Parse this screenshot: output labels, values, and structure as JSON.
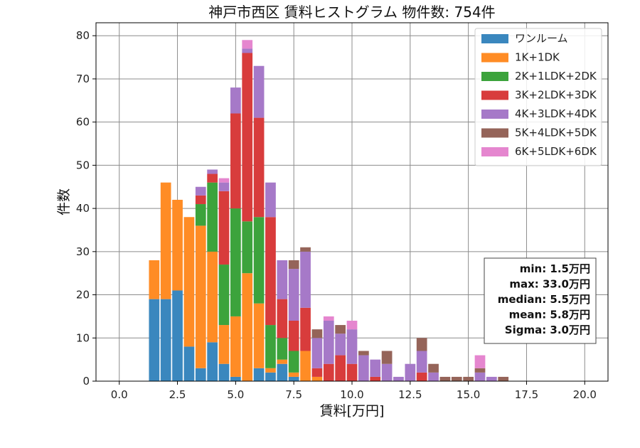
{
  "chart_data": {
    "type": "bar",
    "stacked": true,
    "title": "神戸市西区 賃料ヒストグラム 物件数: 754件",
    "xlabel": "賃料[万円]",
    "ylabel": "件数",
    "xlim": [
      -1.0,
      21.0
    ],
    "ylim": [
      0,
      83
    ],
    "xticks": [
      0.0,
      2.5,
      5.0,
      7.5,
      10.0,
      12.5,
      15.0,
      17.5,
      20.0
    ],
    "xtick_labels": [
      "0.0",
      "2.5",
      "5.0",
      "7.5",
      "10.0",
      "12.5",
      "15.0",
      "17.5",
      "20.0"
    ],
    "yticks": [
      0,
      10,
      20,
      30,
      40,
      50,
      60,
      70,
      80
    ],
    "ytick_labels": [
      "0",
      "10",
      "20",
      "30",
      "40",
      "50",
      "60",
      "70",
      "80"
    ],
    "grid": true,
    "legend_position": "top-right",
    "bin_width": 0.5,
    "x": [
      1.5,
      2.0,
      2.5,
      3.0,
      3.5,
      4.0,
      4.5,
      5.0,
      5.5,
      6.0,
      6.5,
      7.0,
      7.5,
      8.0,
      8.5,
      9.0,
      9.5,
      10.0,
      10.5,
      11.0,
      11.5,
      12.0,
      12.5,
      13.0,
      13.5,
      14.0,
      14.5,
      15.0,
      15.5,
      16.0,
      16.5
    ],
    "series": [
      {
        "name": "ワンルーム",
        "color": "#3a87be",
        "values": [
          19,
          19,
          21,
          8,
          3,
          9,
          4,
          1,
          0,
          3,
          2,
          4,
          1,
          0,
          0,
          0,
          0,
          0,
          0,
          0,
          0,
          0,
          0,
          0,
          0,
          0,
          0,
          0,
          0,
          0,
          0
        ]
      },
      {
        "name": "1K+1DK",
        "color": "#ff8c25",
        "values": [
          9,
          27,
          21,
          30,
          33,
          21,
          9,
          14,
          25,
          15,
          1,
          1,
          1,
          7,
          1,
          0,
          0,
          0,
          0,
          0,
          0,
          0,
          0,
          0,
          0,
          0,
          0,
          0,
          0,
          0,
          0
        ]
      },
      {
        "name": "2K+1LDK+2DK",
        "color": "#3ca33c",
        "values": [
          0,
          0,
          0,
          0,
          5,
          16,
          14,
          25,
          12,
          20,
          10,
          5,
          5,
          0,
          0,
          0,
          0,
          0,
          0,
          0,
          0,
          0,
          0,
          0,
          0,
          0,
          0,
          0,
          0,
          0,
          0
        ]
      },
      {
        "name": "3K+2LDK+3DK",
        "color": "#d83c3c",
        "values": [
          0,
          0,
          0,
          0,
          2,
          2,
          17,
          22,
          39,
          23,
          25,
          9,
          7,
          10,
          2,
          4,
          6,
          4,
          0,
          1,
          0,
          0,
          0,
          2,
          0,
          0,
          0,
          0,
          0,
          0,
          0
        ]
      },
      {
        "name": "4K+3LDK+4DK",
        "color": "#a679c8",
        "values": [
          0,
          0,
          0,
          0,
          2,
          1,
          2,
          6,
          1,
          12,
          8,
          9,
          12,
          13,
          7,
          10,
          5,
          8,
          6,
          4,
          4,
          1,
          4,
          5,
          2,
          0,
          0,
          0,
          2,
          1,
          0
        ]
      },
      {
        "name": "5K+4LDK+5DK",
        "color": "#956459",
        "values": [
          0,
          0,
          0,
          0,
          0,
          0,
          0,
          0,
          0,
          0,
          0,
          0,
          2,
          1,
          2,
          0,
          2,
          0,
          1,
          0,
          3,
          0,
          0,
          3,
          2,
          1,
          1,
          1,
          1,
          0,
          1
        ]
      },
      {
        "name": "6K+5LDK+6DK",
        "color": "#e586cf",
        "values": [
          0,
          0,
          0,
          0,
          0,
          0,
          1,
          0,
          2,
          0,
          0,
          0,
          0,
          0,
          0,
          1,
          0,
          2,
          0,
          0,
          0,
          0,
          0,
          0,
          0,
          0,
          0,
          0,
          3,
          0,
          0
        ]
      }
    ],
    "stats": [
      "min: 1.5万円",
      "max: 33.0万円",
      "median: 5.5万円",
      "mean: 5.8万円",
      "Sigma: 3.0万円"
    ]
  }
}
